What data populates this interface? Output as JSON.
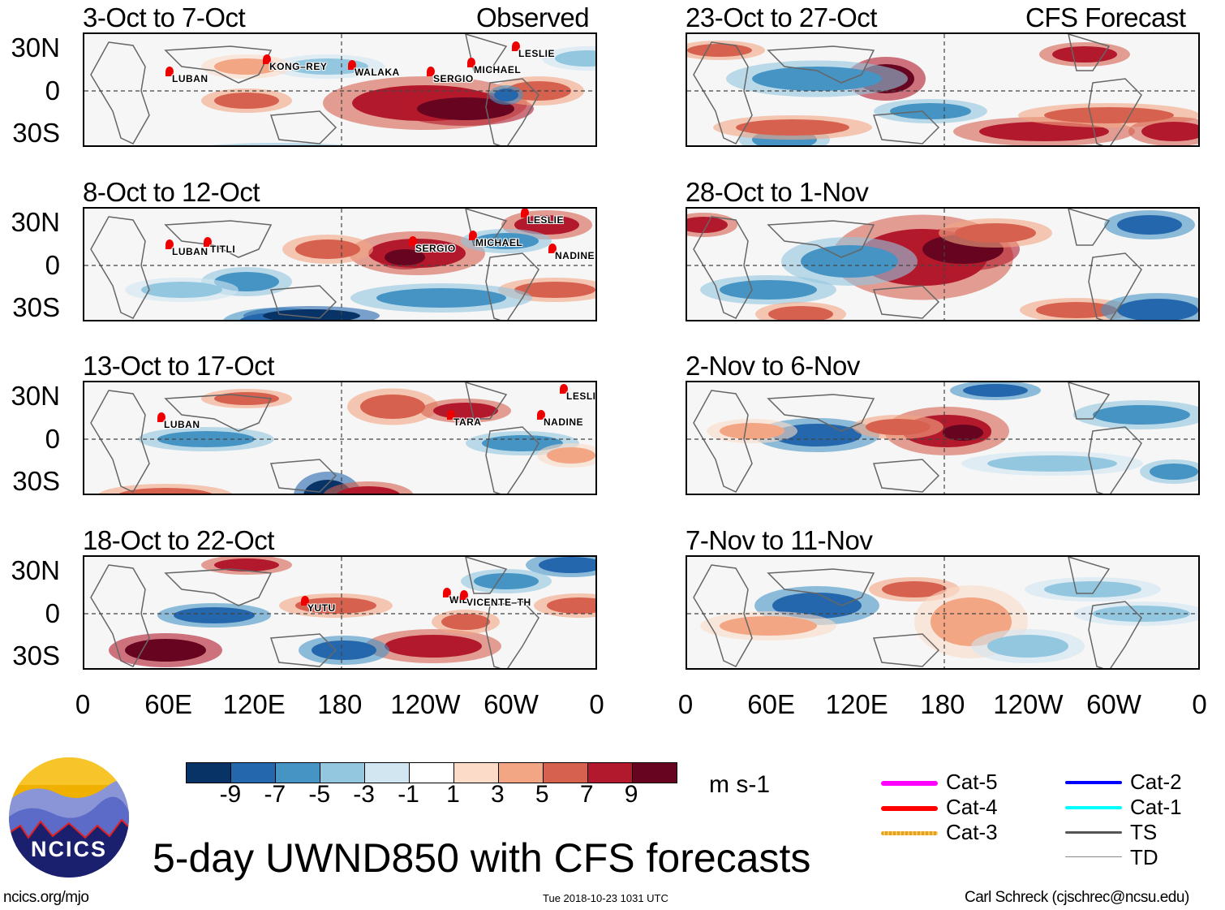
{
  "header": {
    "observed_label": "Observed",
    "forecast_label": "CFS Forecast"
  },
  "panels_left": [
    {
      "title": "3-Oct to 7-Oct",
      "storms": [
        "LUBAN",
        "KONG–REY",
        "WALAKA",
        "SERGIO",
        "MICHAEL",
        "LESLIE"
      ]
    },
    {
      "title": "8-Oct to 12-Oct",
      "storms": [
        "LUBAN",
        "TITLI",
        "SERGIO",
        "MICHAEL",
        "LESLIE",
        "NADINE"
      ]
    },
    {
      "title": "13-Oct to 17-Oct",
      "storms": [
        "LUBAN",
        "TARA",
        "NADINE",
        "LESLIE"
      ]
    },
    {
      "title": "18-Oct to 22-Oct",
      "storms": [
        "YUTU",
        "WIL",
        "VICENTE–TH"
      ]
    }
  ],
  "panels_right": [
    {
      "title": "23-Oct to 27-Oct"
    },
    {
      "title": "28-Oct to 1-Nov"
    },
    {
      "title": "2-Nov to 6-Nov"
    },
    {
      "title": "7-Nov to 11-Nov"
    }
  ],
  "lat_labels": [
    "30N",
    "0",
    "30S"
  ],
  "lon_labels": [
    "0",
    "60E",
    "120E",
    "180",
    "120W",
    "60W",
    "0"
  ],
  "colorbar": {
    "colors": [
      "#073366",
      "#2467ad",
      "#4594c4",
      "#93c6df",
      "#d2e6f1",
      "#ffffff",
      "#fcdcc8",
      "#f3a683",
      "#d6614e",
      "#b3192c",
      "#670520"
    ],
    "labels": [
      "-9",
      "-7",
      "-5",
      "-3",
      "-1",
      "1",
      "3",
      "5",
      "7",
      "9"
    ],
    "units": "m s-1"
  },
  "legend": [
    {
      "label": "Cat-5",
      "color": "#ff00ff"
    },
    {
      "label": "Cat-4",
      "color": "#ff0000"
    },
    {
      "label": "Cat-3",
      "color": "#e8a020"
    },
    {
      "label": "Cat-2",
      "color": "#0000ff"
    },
    {
      "label": "Cat-1",
      "color": "#00ffff"
    },
    {
      "label": "TS",
      "color": "#555555"
    },
    {
      "label": "TD",
      "color": "#888888"
    }
  ],
  "logo": {
    "text": "NCICS"
  },
  "footer": {
    "main_title": "5-day UWND850 with CFS forecasts",
    "url": "ncics.org/mjo",
    "timestamp": "Tue 2018-10-23 1031 UTC",
    "credit": "Carl Schreck (cjschrec@ncsu.edu)"
  }
}
